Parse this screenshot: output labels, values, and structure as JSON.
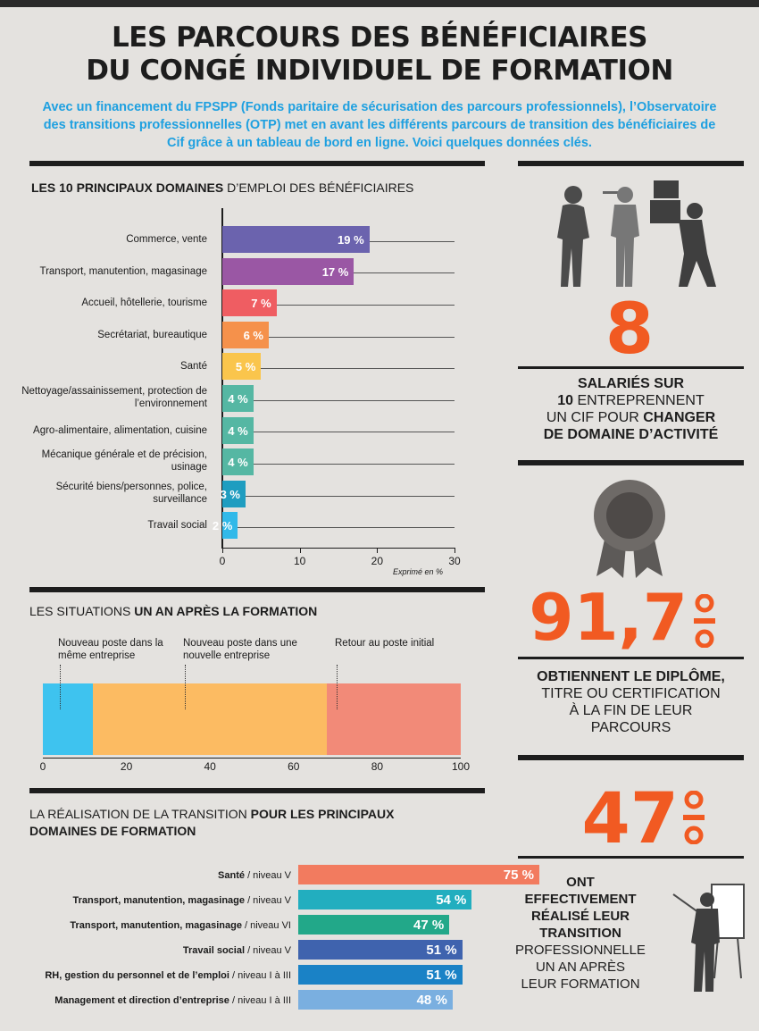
{
  "header": {
    "title_line1": "LES PARCOURS DES BÉNÉFICIAIRES",
    "title_line2": "DU CONGÉ INDIVIDUEL DE FORMATION",
    "intro": "Avec un financement du FPSPP (Fonds paritaire de sécurisation des parcours professionnels), l’Observatoire des transitions professionnelles (OTP) met en avant les différents parcours de transition des bénéficiaires de Cif grâce à un tableau de bord en ligne. Voici quelques données clés."
  },
  "domains_section": {
    "title_bold": "LES 10 PRINCIPAUX DOMAINES",
    "title_rest": " D’EMPLOI DES BÉNÉFICIAIRES",
    "note": "Exprimé en %"
  },
  "situations_section": {
    "title_rest": "LES SITUATIONS ",
    "title_bold": "UN AN APRÈS LA FORMATION"
  },
  "transition_section": {
    "title_rest": "LA RÉALISATION DE LA TRANSITION ",
    "title_bold": "POUR LES PRINCIPAUX DOMAINES DE FORMATION"
  },
  "colors": {
    "orange": "#f15a22",
    "blue_text": "#1ea0e0"
  },
  "stats": [
    {
      "number": "8",
      "symbol": "",
      "icon": "people-silhouettes-icon",
      "lines": [
        {
          "bold": "SALARIÉS SUR",
          "rest": ""
        },
        {
          "bold": "10",
          "rest": " ENTREPRENNENT"
        },
        {
          "rest": "UN CIF POUR ",
          "bold": "CHANGER"
        },
        {
          "bold": "DE DOMAINE D’ACTIVITÉ",
          "rest": ""
        }
      ]
    },
    {
      "number": "91,7",
      "symbol": "%",
      "icon": "award-rosette-icon",
      "lines": [
        {
          "bold": "OBTIENNENT LE DIPLÔME,",
          "rest": ""
        },
        {
          "rest": "TITRE OU CERTIFICATION"
        },
        {
          "rest": "À LA FIN DE LEUR"
        },
        {
          "rest": "PARCOURS"
        }
      ]
    },
    {
      "number": "47",
      "symbol": "%",
      "icon": "presenter-whiteboard-icon",
      "lines": [
        {
          "bold": "ONT"
        },
        {
          "bold": "EFFECTIVEMENT"
        },
        {
          "bold": "RÉALISÉ LEUR"
        },
        {
          "bold": "TRANSITION"
        },
        {
          "rest": "PROFESSIONNELLE"
        },
        {
          "rest": "UN AN APRÈS"
        },
        {
          "rest": "LEUR FORMATION"
        }
      ]
    }
  ],
  "chart_data": [
    {
      "type": "bar",
      "orientation": "horizontal",
      "title": "LES 10 PRINCIPAUX DOMAINES D’EMPLOI DES BÉNÉFICIAIRES",
      "categories": [
        "Commerce, vente",
        "Transport, manutention, magasinage",
        "Accueil, hôtellerie, tourisme",
        "Secrétariat, bureautique",
        "Santé",
        "Nettoyage/assainissement, protection de l’environnement",
        "Agro-alimentaire, alimentation, cuisine",
        "Mécanique générale et de précision, usinage",
        "Sécurité biens/personnes, police, surveillance",
        "Travail social"
      ],
      "values": [
        19,
        17,
        7,
        6,
        5,
        4,
        4,
        4,
        3,
        2
      ],
      "value_labels": [
        "19 %",
        "17 %",
        "7 %",
        "6 %",
        "5 %",
        "4 %",
        "4 %",
        "4 %",
        "3 %",
        "2 %"
      ],
      "colors": [
        "#6b63ae",
        "#9a57a4",
        "#ef5d62",
        "#f5914b",
        "#fac54c",
        "#55b7a3",
        "#55b7a3",
        "#55b7a3",
        "#1f9dc0",
        "#31b9e9"
      ],
      "xlim": [
        0,
        30
      ],
      "xticks": [
        0,
        10,
        20,
        30
      ],
      "unit_note": "Exprimé en %"
    },
    {
      "type": "bar",
      "orientation": "stacked-horizontal",
      "title": "LES SITUATIONS UN AN APRÈS LA FORMATION",
      "series": [
        {
          "name": "Nouveau poste dans la même entreprise",
          "value": 12,
          "color": "#3ec3ef"
        },
        {
          "name": "Nouveau poste dans une nouvelle entreprise",
          "value": 56,
          "color": "#fcbb62"
        },
        {
          "name": "Retour au poste initial",
          "value": 32,
          "color": "#f28a78"
        }
      ],
      "xlim": [
        0,
        100
      ],
      "xticks": [
        0,
        20,
        40,
        60,
        80,
        100
      ]
    },
    {
      "type": "bar",
      "orientation": "horizontal",
      "title": "LA RÉALISATION DE LA TRANSITION POUR LES PRINCIPAUX DOMAINES DE FORMATION",
      "categories": [
        {
          "bold": "Santé",
          "rest": " / niveau V"
        },
        {
          "bold": "Transport, manutention, magasinage",
          "rest": " / niveau V"
        },
        {
          "bold": "Transport, manutention, magasinage",
          "rest": " / niveau VI"
        },
        {
          "bold": "Travail social",
          "rest": " / niveau V"
        },
        {
          "bold": "RH, gestion du personnel et de l’emploi",
          "rest": " / niveau I à III"
        },
        {
          "bold": "Management et direction d’entreprise",
          "rest": " / niveau I à III"
        }
      ],
      "values": [
        75,
        54,
        47,
        51,
        51,
        48
      ],
      "value_labels": [
        "75 %",
        "54 %",
        "47 %",
        "51 %",
        "51 %",
        "48 %"
      ],
      "colors": [
        "#f27b5f",
        "#22aebf",
        "#22a889",
        "#3f63ae",
        "#1a82c6",
        "#7aafe0"
      ],
      "xlim": [
        0,
        100
      ]
    }
  ]
}
